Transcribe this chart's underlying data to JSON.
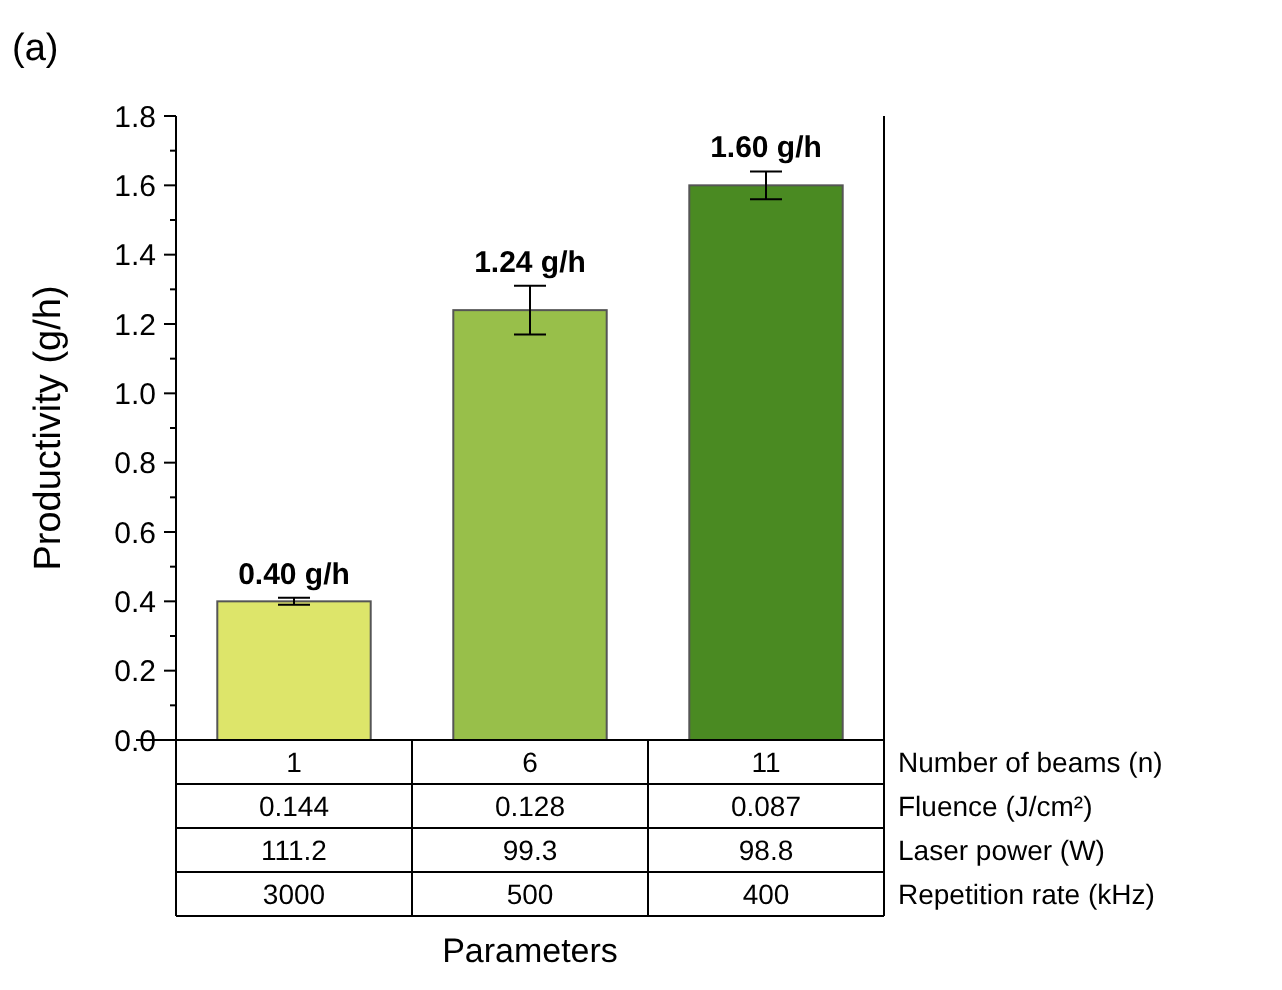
{
  "chart_data": {
    "type": "bar",
    "title": "(a)",
    "xlabel": "Parameters",
    "ylabel": "Productivity (g/h)",
    "categories": [
      "1",
      "6",
      "11"
    ],
    "values": [
      0.4,
      1.24,
      1.6
    ],
    "colors": [
      "#dde56a",
      "#98bf4a",
      "#4a8a22"
    ],
    "errors": [
      0.01,
      0.07,
      0.04
    ],
    "value_labels": [
      "0.40 g/h",
      "1.24 g/h",
      "1.60 g/h"
    ],
    "ylim": [
      0,
      1.8
    ],
    "yticks": [
      {
        "value": 0,
        "label": "0.0"
      },
      0.2,
      0.4,
      0.6,
      0.8,
      {
        "value": 1,
        "label": "1.0"
      },
      1.2,
      1.4,
      1.6,
      1.8
    ],
    "annotations": [
      "Number of beams (n)",
      "Fluence (J/cm²)",
      "Laser power (W)",
      "Repetition rate (kHz)",
      "0.144",
      "0.128",
      "0.087",
      "111.2",
      "99.3",
      "98.8",
      "3000",
      "500",
      "400"
    ],
    "grid": false
  }
}
